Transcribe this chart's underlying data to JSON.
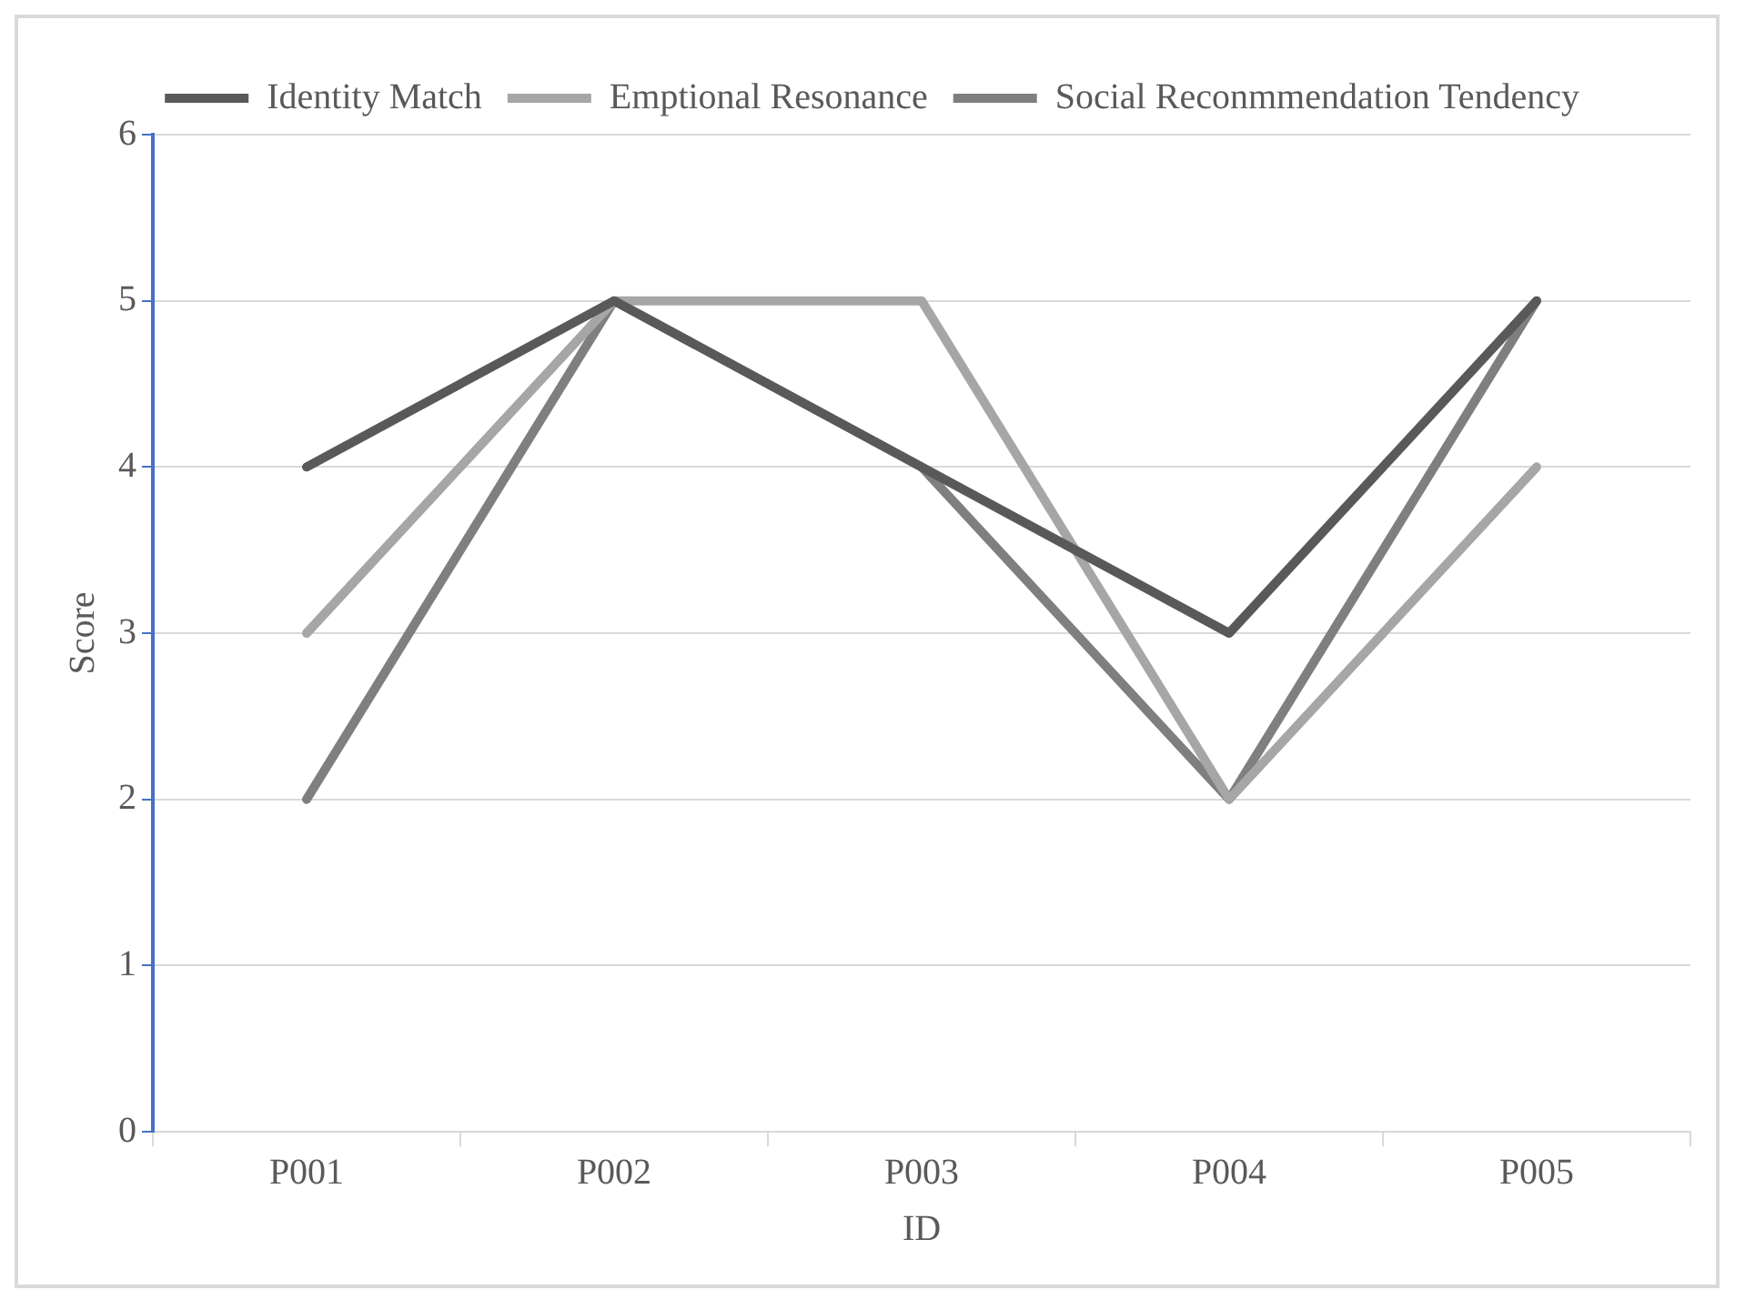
{
  "chart_data": {
    "type": "line",
    "xlabel": "ID",
    "ylabel": "Score",
    "categories": [
      "P001",
      "P002",
      "P003",
      "P004",
      "P005"
    ],
    "series": [
      {
        "name": "Identity Match",
        "color": "#595959",
        "values": [
          4,
          5,
          4,
          3,
          5
        ]
      },
      {
        "name": "Emptional Resonance",
        "color": "#a6a6a6",
        "values": [
          3,
          5,
          5,
          2,
          4
        ]
      },
      {
        "name": "Social Reconmmendation Tendency",
        "color": "#7f7f7f",
        "values": [
          2,
          5,
          4,
          2,
          5
        ]
      }
    ],
    "ylim": [
      0,
      6
    ],
    "yticks": [
      0,
      1,
      2,
      3,
      4,
      5,
      6
    ],
    "grid": "y",
    "legend": "top",
    "marker": "none",
    "line_style": "solid"
  }
}
